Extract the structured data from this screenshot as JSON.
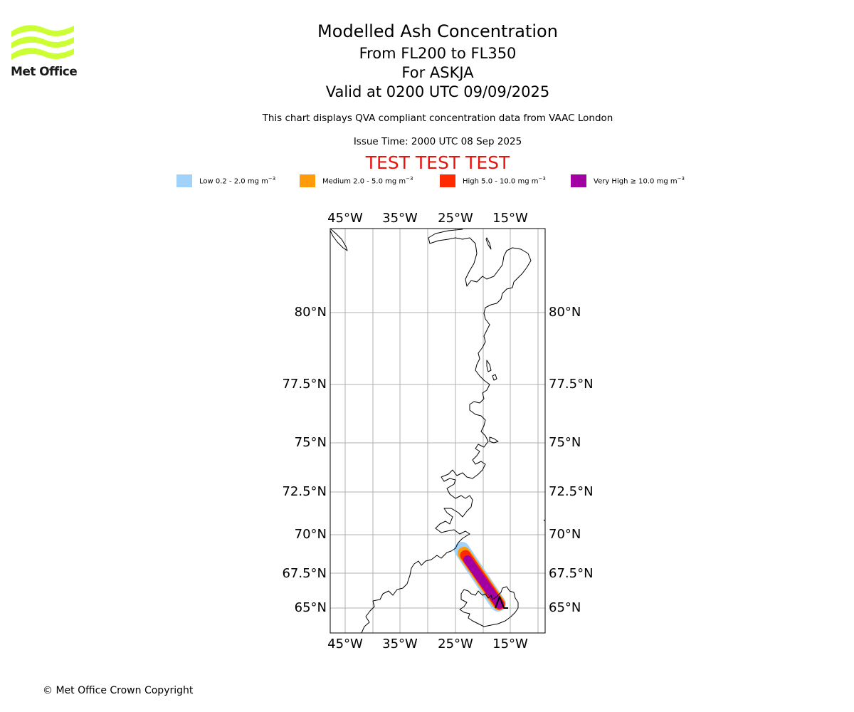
{
  "header": {
    "logo_text": "Met Office",
    "title": "Modelled Ash Concentration",
    "flight_levels": "From FL200 to FL350",
    "volcano": "For ASKJA",
    "valid_time": "Valid at 0200 UTC 09/09/2025",
    "description": "This chart displays QVA compliant concentration data from VAAC London",
    "issue_time": "Issue Time: 2000 UTC 08 Sep 2025",
    "test_banner": "TEST TEST TEST"
  },
  "legend": [
    {
      "label": "Low 0.2 - 2.0 mg m",
      "exp": "−3",
      "color": "#a0d2fa"
    },
    {
      "label": "Medium 2.0 - 5.0 mg m",
      "exp": "−3",
      "color": "#ff9a0a"
    },
    {
      "label": "High 5.0 - 10.0 mg m",
      "exp": "−3",
      "color": "#ff2a00"
    },
    {
      "label": "Very High  ≥  10.0 mg m",
      "exp": "−3",
      "color": "#a300a3"
    }
  ],
  "map": {
    "lon_ticks": [
      "45°W",
      "35°W",
      "25°W",
      "15°W"
    ],
    "lat_ticks": [
      "80°N",
      "77.5°N",
      "75°N",
      "72.5°N",
      "70°N",
      "67.5°N",
      "65°N"
    ],
    "colors": {
      "grid": "#b0b0b0",
      "coast": "#000000"
    }
  },
  "footer": {
    "copyright": "© Met Office Crown Copyright"
  }
}
